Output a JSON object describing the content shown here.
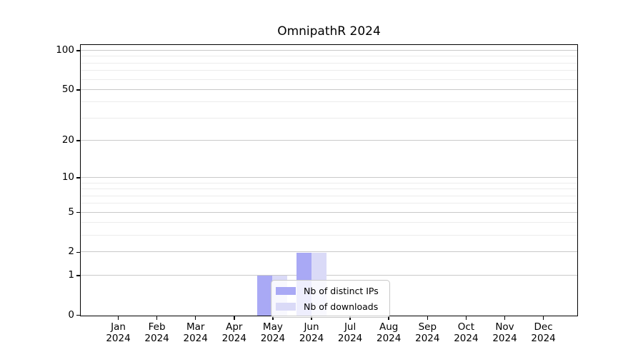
{
  "chart_data": {
    "type": "bar",
    "title": "OmnipathR 2024",
    "x_tick_labels": [
      {
        "line1": "Jan",
        "line2": "2024"
      },
      {
        "line1": "Feb",
        "line2": "2024"
      },
      {
        "line1": "Mar",
        "line2": "2024"
      },
      {
        "line1": "Apr",
        "line2": "2024"
      },
      {
        "line1": "May",
        "line2": "2024"
      },
      {
        "line1": "Jun",
        "line2": "2024"
      },
      {
        "line1": "Jul",
        "line2": "2024"
      },
      {
        "line1": "Aug",
        "line2": "2024"
      },
      {
        "line1": "Sep",
        "line2": "2024"
      },
      {
        "line1": "Oct",
        "line2": "2024"
      },
      {
        "line1": "Nov",
        "line2": "2024"
      },
      {
        "line1": "Dec",
        "line2": "2024"
      }
    ],
    "series": [
      {
        "name": "Nb of distinct IPs",
        "color": "#a9a9f5",
        "values": [
          0,
          0,
          0,
          0,
          1,
          2,
          0,
          0,
          0,
          0,
          0,
          0
        ]
      },
      {
        "name": "Nb of downloads",
        "color": "#dadaf7",
        "values": [
          0,
          0,
          0,
          0,
          1,
          2,
          0,
          0,
          0,
          0,
          0,
          0
        ]
      }
    ],
    "yaxis": {
      "scale": "log1p",
      "ticks": [
        0,
        1,
        2,
        5,
        10,
        20,
        50,
        100
      ],
      "minor_gridlines": [
        3,
        4,
        6,
        7,
        8,
        9,
        30,
        40,
        60,
        70,
        80,
        90
      ],
      "max": 110
    },
    "legend": {
      "entries": [
        "Nb of distinct IPs",
        "Nb of downloads"
      ],
      "position": "lower-center"
    },
    "colors": {
      "background": "#ffffff",
      "spine": "#000000",
      "major_grid": "#c9c9c9",
      "minor_grid": "#ececec",
      "legend_border": "#c8c8c8",
      "legend_bg": "rgba(255,255,255,0.8)",
      "text": "#000000"
    },
    "grid": true
  }
}
